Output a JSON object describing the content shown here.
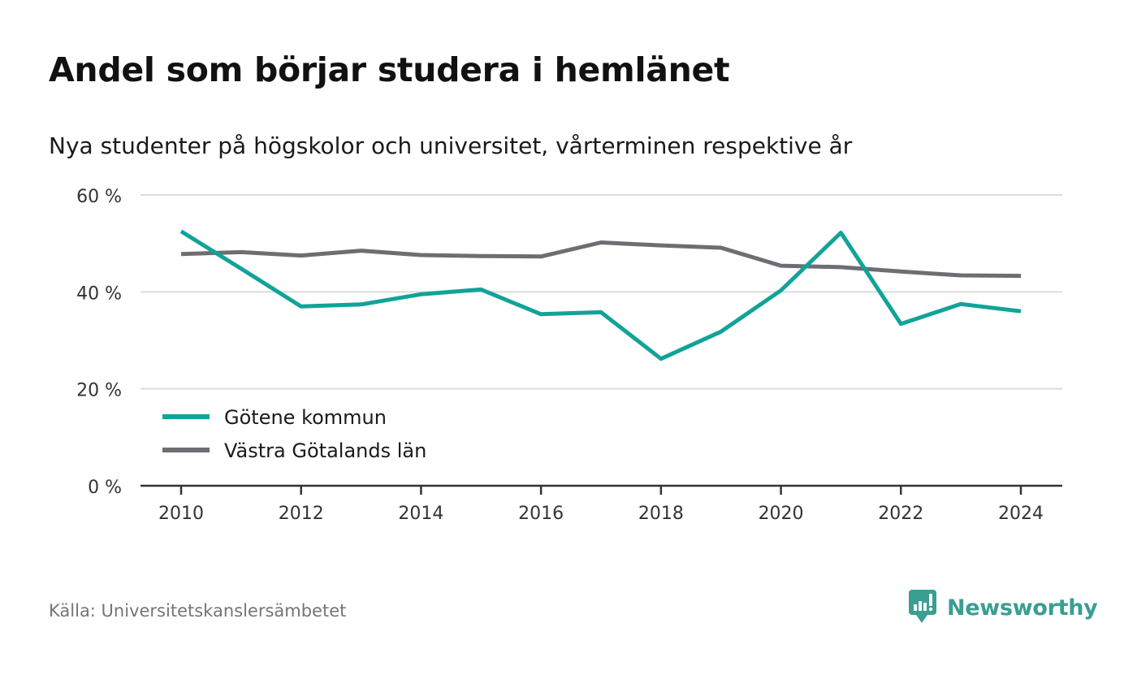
{
  "header": {
    "title": "Andel som börjar studera i hemlänet",
    "subtitle": "Nya studenter på högskolor och universitet, vårterminen respektive år"
  },
  "footer": {
    "source": "Källa: Universitetskanslersämbetet",
    "brand": "Newsworthy"
  },
  "chart_data": {
    "type": "line",
    "x": [
      2010,
      2011,
      2012,
      2013,
      2014,
      2015,
      2016,
      2017,
      2018,
      2019,
      2020,
      2021,
      2022,
      2023,
      2024
    ],
    "x_ticks": [
      2010,
      2012,
      2014,
      2016,
      2018,
      2020,
      2022,
      2024
    ],
    "x_tick_labels": [
      "2010",
      "2012",
      "2014",
      "2016",
      "2018",
      "2020",
      "2022",
      "2024"
    ],
    "y_ticks": [
      0,
      20,
      40,
      60
    ],
    "y_tick_labels": [
      "0 %",
      "20 %",
      "40 %",
      "60 %"
    ],
    "ylim": [
      0,
      60
    ],
    "grid": true,
    "legend_position": "bottom-left",
    "series": [
      {
        "name": "Götene kommun",
        "color": "#12a398",
        "values": [
          52.5,
          44.8,
          37.0,
          37.4,
          39.5,
          40.5,
          35.4,
          35.8,
          26.2,
          31.8,
          40.3,
          52.2,
          33.4,
          37.5,
          36.0
        ]
      },
      {
        "name": "Västra Götalands län",
        "color": "#6e6d73",
        "values": [
          47.8,
          48.2,
          47.5,
          48.5,
          47.6,
          47.4,
          47.3,
          50.2,
          49.6,
          49.1,
          45.4,
          45.1,
          44.2,
          43.4,
          43.3
        ]
      }
    ]
  }
}
